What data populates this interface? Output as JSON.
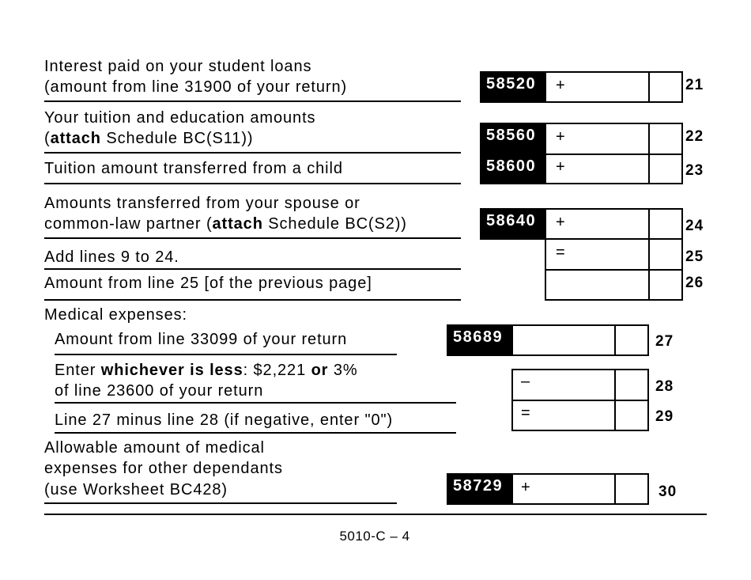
{
  "lines": [
    {
      "line": "21",
      "text": [
        "Interest paid on your student loans",
        "(amount from line 31900 of your return)"
      ],
      "code": "58520",
      "operator": "+"
    },
    {
      "line": "22",
      "text_parts": [
        "(",
        "attach",
        " Schedule BC(S11))"
      ],
      "text_first": "Your tuition and education amounts",
      "code": "58560",
      "operator": "+"
    },
    {
      "line": "23",
      "text": [
        "Tuition amount transferred from a child"
      ],
      "code": "58600",
      "operator": "+"
    },
    {
      "line": "24",
      "text_first": "Amounts transferred from your spouse or",
      "text_parts": [
        "common-law partner (",
        "attach",
        " Schedule BC(S2))"
      ],
      "code": "58640",
      "operator": "+"
    },
    {
      "line": "25",
      "text": [
        "Add lines 9 to 24."
      ],
      "operator": "="
    },
    {
      "line": "26",
      "text": [
        "Amount from line 25 [of the previous page]"
      ]
    },
    {
      "line": "27",
      "heading": "Medical expenses:",
      "text": [
        "Amount from line 33099 of your return"
      ],
      "code": "58689"
    },
    {
      "line": "28",
      "text_parts": [
        "Enter ",
        "whichever is less",
        ": $2,221 ",
        "or",
        " 3%"
      ],
      "text_second": "of line 23600 of your return",
      "operator": "–"
    },
    {
      "line": "29",
      "text": [
        "Line 27 minus line 28 (if negative, enter \"0\")"
      ],
      "operator": "="
    },
    {
      "line": "30",
      "text": [
        "Allowable amount of medical",
        "expenses for other dependants",
        "(use Worksheet BC428)"
      ],
      "code": "58729",
      "operator": "+"
    }
  ],
  "footer": {
    "page_label": "5010-C – 4"
  }
}
